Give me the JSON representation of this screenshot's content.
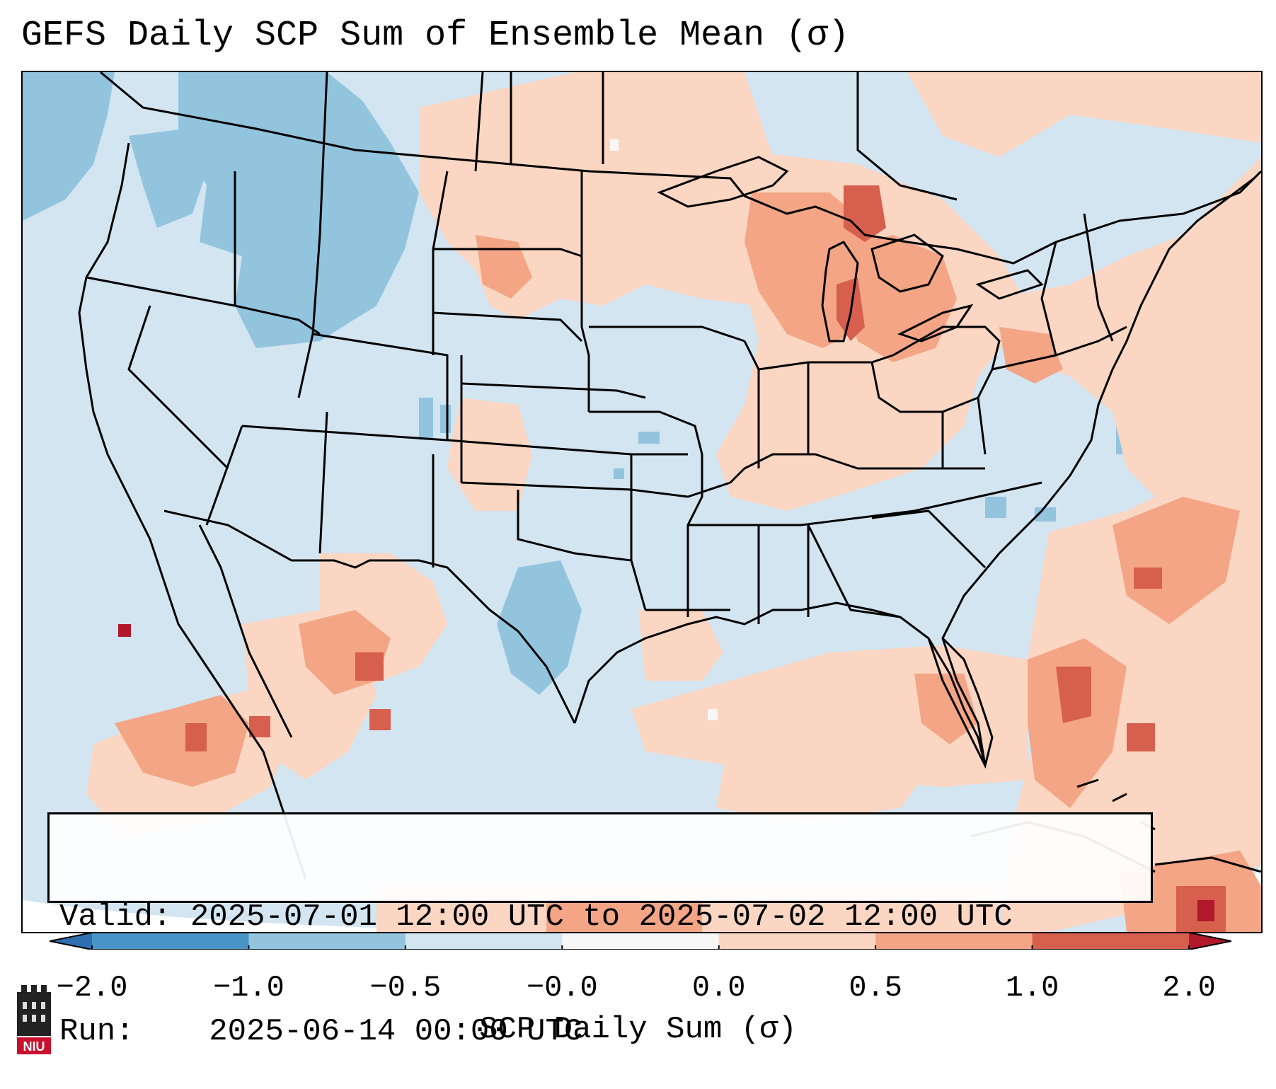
{
  "title": "GEFS Daily SCP Sum of Ensemble Mean (σ)",
  "info": {
    "valid_label": "Valid:",
    "valid_value": "2025-07-01 12:00 UTC to 2025-07-02 12:00 UTC",
    "run_label": "Run:",
    "run_value": "2025-06-14 00:00 UTC"
  },
  "colorbar": {
    "label": "SCP Daily Sum (σ)",
    "ticks": [
      "−2.0",
      "−1.0",
      "−0.5",
      "−0.0",
      "0.0",
      "0.5",
      "1.0",
      "2.0"
    ],
    "bins": [
      {
        "range": "< -2.0",
        "color": "#2f6fb0"
      },
      {
        "range": "-2.0 to -1.0",
        "color": "#4a95c8"
      },
      {
        "range": "-1.0 to -0.5",
        "color": "#92c4de"
      },
      {
        "range": "-0.5 to -0.0",
        "color": "#d3e5f1"
      },
      {
        "range": "-0.0 to 0.0",
        "color": "#f7f7f7"
      },
      {
        "range": "0.0 to 0.5",
        "color": "#fbd6c3"
      },
      {
        "range": "0.5 to 1.0",
        "color": "#f3a585"
      },
      {
        "range": "1.0 to 2.0",
        "color": "#d6604d"
      },
      {
        "range": "> 2.0",
        "color": "#b2182b"
      }
    ]
  },
  "logo": {
    "text": "NIU"
  },
  "map": {
    "background_value": "-0.5 to -0.0",
    "anomaly_regions": [
      {
        "name": "pacific-northwest",
        "category": "-1.0 to -0.5"
      },
      {
        "name": "idaho-montana",
        "category": "-1.0 to -0.5"
      },
      {
        "name": "west-texas",
        "category": "-1.0 to -0.5"
      },
      {
        "name": "northern-plains",
        "category": "0.0 to 0.5"
      },
      {
        "name": "great-lakes",
        "category": "0.5 to 1.0"
      },
      {
        "name": "michigan",
        "category": "1.0 to 2.0"
      },
      {
        "name": "ohio-valley",
        "category": "0.0 to 0.5"
      },
      {
        "name": "northeast",
        "category": "0.0 to 0.5"
      },
      {
        "name": "gulf-coast",
        "category": "0.0 to 0.5"
      },
      {
        "name": "atlantic-offshore",
        "category": "0.5 to 1.0"
      },
      {
        "name": "mexico-west",
        "category": "0.5 to 1.0"
      },
      {
        "name": "caribbean",
        "category": "1.0 to 2.0"
      }
    ]
  }
}
